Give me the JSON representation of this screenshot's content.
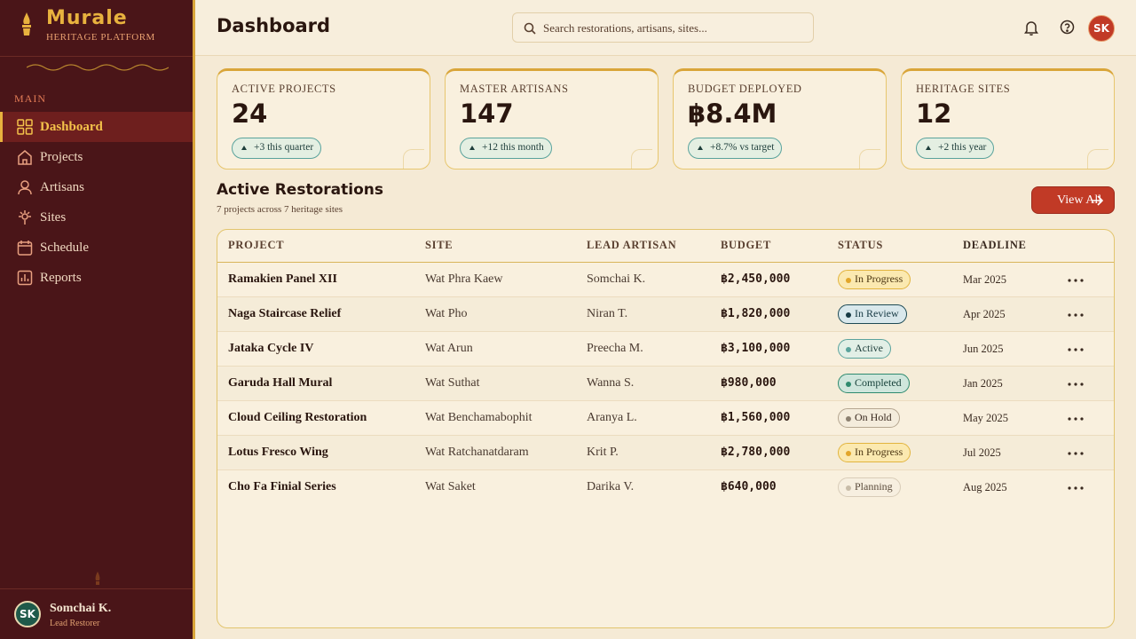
{
  "sidebar": {
    "brand": "Murale",
    "tagline": "HERITAGE PLATFORM",
    "section": "MAIN",
    "nav": [
      "Dashboard",
      "Projects",
      "Artisans",
      "Sites",
      "Schedule",
      "Reports"
    ],
    "user": {
      "initials": "SK",
      "name": "Somchai K.",
      "role": "Lead Restorer"
    }
  },
  "header": {
    "title": "Dashboard",
    "search_placeholder": "Search restorations, artisans, sites...",
    "avatar": "SK"
  },
  "stats": [
    {
      "label": "ACTIVE PROJECTS",
      "value": "24",
      "change": "+3 this quarter"
    },
    {
      "label": "MASTER ARTISANS",
      "value": "147",
      "change": "+12 this month"
    },
    {
      "label": "BUDGET DEPLOYED",
      "value": "฿8.4M",
      "change": "+8.7% vs target"
    },
    {
      "label": "HERITAGE SITES",
      "value": "12",
      "change": "+2 this year"
    }
  ],
  "table": {
    "title": "Active Restorations",
    "subtitle": "7 projects across 7 heritage sites",
    "action": "View All",
    "columns": [
      "PROJECT",
      "SITE",
      "LEAD ARTISAN",
      "BUDGET",
      "STATUS",
      "DEADLINE"
    ],
    "rows": [
      [
        "Ramakien Panel XII",
        "Wat Phra Kaew",
        "Somchai K.",
        "฿2,450,000",
        "In Progress",
        "Mar 2025"
      ],
      [
        "Naga Staircase Relief",
        "Wat Pho",
        "Niran T.",
        "฿1,820,000",
        "In Review",
        "Apr 2025"
      ],
      [
        "Jataka Cycle IV",
        "Wat Arun",
        "Preecha M.",
        "฿3,100,000",
        "Active",
        "Jun 2025"
      ],
      [
        "Garuda Hall Mural",
        "Wat Suthat",
        "Wanna S.",
        "฿980,000",
        "Completed",
        "Jan 2025"
      ],
      [
        "Cloud Ceiling Restoration",
        "Wat Benchamabophit",
        "Aranya L.",
        "฿1,560,000",
        "On Hold",
        "May 2025"
      ],
      [
        "Lotus Fresco Wing",
        "Wat Ratchanatdaram",
        "Krit P.",
        "฿2,780,000",
        "In Progress",
        "Jul 2025"
      ],
      [
        "Cho Fa Finial Series",
        "Wat Saket",
        "Darika V.",
        "฿640,000",
        "Planning",
        "Aug 2025"
      ]
    ]
  }
}
